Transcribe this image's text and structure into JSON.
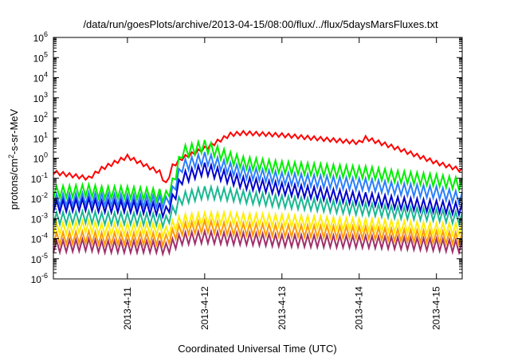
{
  "chart_data": {
    "type": "line",
    "title": "/data/run/goesPlots/archive/2013-04-15/08:00/flux/../flux/5daysMarsFluxes.txt",
    "xlabel": "Coordinated Universal Time (UTC)",
    "ylabel_parts": [
      "protons/cm",
      "2",
      "-s-sr-MeV"
    ],
    "y_scale": "log",
    "ylim": [
      1e-06,
      1000000.0
    ],
    "y_ticks": [
      {
        "value": 1e-06,
        "base": "10",
        "exp": "-6"
      },
      {
        "value": 1e-05,
        "base": "10",
        "exp": "-5"
      },
      {
        "value": 0.0001,
        "base": "10",
        "exp": "-4"
      },
      {
        "value": 0.001,
        "base": "10",
        "exp": "-3"
      },
      {
        "value": 0.01,
        "base": "10",
        "exp": "-2"
      },
      {
        "value": 0.1,
        "base": "10",
        "exp": "-1"
      },
      {
        "value": 1,
        "base": "10",
        "exp": "0"
      },
      {
        "value": 10.0,
        "base": "10",
        "exp": "1"
      },
      {
        "value": 100.0,
        "base": "10",
        "exp": "2"
      },
      {
        "value": 1000.0,
        "base": "10",
        "exp": "3"
      },
      {
        "value": 10000.0,
        "base": "10",
        "exp": "4"
      },
      {
        "value": 100000.0,
        "base": "10",
        "exp": "5"
      },
      {
        "value": 1000000.0,
        "base": "10",
        "exp": "6"
      }
    ],
    "x_range_days": [
      "2013-04-10 01:00",
      "2013-04-15 08:00"
    ],
    "x_ticks": [
      {
        "value": "2013-04-11",
        "label": "2013-4-11"
      },
      {
        "value": "2013-04-12",
        "label": "2013-4-12"
      },
      {
        "value": "2013-04-13",
        "label": "2013-4-13"
      },
      {
        "value": "2013-04-14",
        "label": "2013-4-14"
      },
      {
        "value": "2013-04-15",
        "label": "2013-4-15"
      }
    ],
    "x": [
      "2013-04-10 01:00",
      "2013-04-10 12:00",
      "2013-04-10 16:00",
      "2013-04-11 00:00",
      "2013-04-11 10:00",
      "2013-04-11 12:00",
      "2013-04-11 14:00",
      "2013-04-11 17:00",
      "2013-04-12 00:00",
      "2013-04-12 08:00",
      "2013-04-12 12:00",
      "2013-04-13 00:00",
      "2013-04-14 00:00",
      "2013-04-14 02:00",
      "2013-04-14 12:00",
      "2013-04-15 00:00",
      "2013-04-15 08:00"
    ],
    "series": [
      {
        "color": "#ff0000",
        "sawtooth": 0.02,
        "values": [
          0.2,
          0.1,
          0.3,
          1.2,
          0.2,
          0.05,
          0.4,
          1.0,
          3.0,
          15,
          18,
          14,
          6,
          10,
          3,
          0.6,
          0.25
        ]
      },
      {
        "color": "#00ee00",
        "sawtooth": 0.06,
        "values": [
          0.02,
          0.025,
          0.02,
          0.02,
          0.015,
          0.012,
          0.05,
          2.0,
          4.0,
          1.0,
          0.6,
          0.35,
          0.2,
          0.2,
          0.12,
          0.08,
          0.05
        ]
      },
      {
        "color": "#2a7fff",
        "sawtooth": 0.06,
        "values": [
          0.008,
          0.01,
          0.009,
          0.008,
          0.007,
          0.006,
          0.02,
          0.4,
          1.0,
          0.3,
          0.2,
          0.1,
          0.05,
          0.05,
          0.03,
          0.02,
          0.01
        ]
      },
      {
        "color": "#0000cc",
        "sawtooth": 0.06,
        "values": [
          0.004,
          0.005,
          0.004,
          0.004,
          0.003,
          0.002,
          0.008,
          0.1,
          0.3,
          0.1,
          0.06,
          0.03,
          0.01,
          0.01,
          0.006,
          0.004,
          0.003
        ]
      },
      {
        "color": "#1ab893",
        "sawtooth": 0.06,
        "values": [
          0.001,
          0.0012,
          0.001,
          0.001,
          0.0009,
          0.0007,
          0.002,
          0.01,
          0.02,
          0.015,
          0.012,
          0.007,
          0.003,
          0.003,
          0.002,
          0.0015,
          0.001
        ]
      },
      {
        "color": "#ffee00",
        "sawtooth": 0.06,
        "values": [
          0.0003,
          0.0004,
          0.0003,
          0.0003,
          0.0003,
          0.0002,
          0.0004,
          0.0008,
          0.001,
          0.001,
          0.0009,
          0.0008,
          0.0005,
          0.0005,
          0.0004,
          0.0003,
          0.0003
        ]
      },
      {
        "color": "#ff9900",
        "sawtooth": 0.06,
        "values": [
          0.0001,
          0.00012,
          0.0001,
          0.0001,
          0.0001,
          8e-05,
          0.00015,
          0.0003,
          0.0004,
          0.0003,
          0.0003,
          0.00025,
          0.0002,
          0.0002,
          0.00015,
          0.00012,
          0.0001
        ]
      },
      {
        "color": "#a0306a",
        "sawtooth": 0.06,
        "values": [
          4e-05,
          5e-05,
          4e-05,
          4e-05,
          4e-05,
          3e-05,
          5e-05,
          0.0001,
          0.00012,
          0.0001,
          0.0001,
          8e-05,
          7e-05,
          7e-05,
          6e-05,
          5e-05,
          4e-05
        ]
      }
    ],
    "grid": false,
    "legend": "none"
  }
}
